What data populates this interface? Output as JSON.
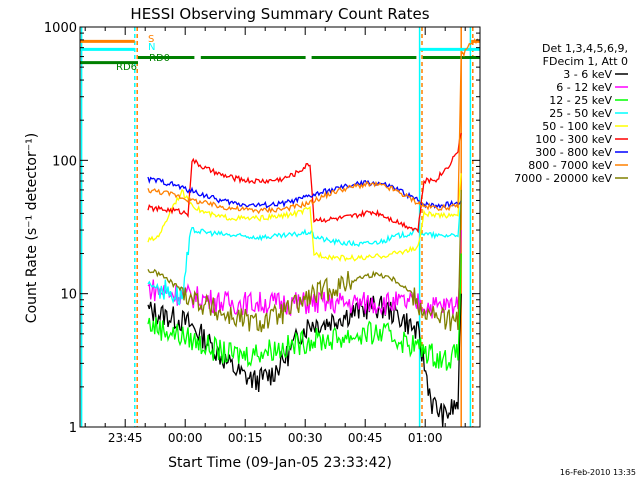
{
  "chart_data": {
    "type": "line",
    "title": "HESSI Observing Summary Count Rates",
    "xlabel": "Start Time (09-Jan-05 23:33:42)",
    "ylabel": "Count Rate (s⁻¹ detector⁻¹)",
    "x_unit": "minutes after 23:33:42",
    "xlim": [
      0,
      100
    ],
    "ylim": [
      1,
      1000
    ],
    "y_scale": "log",
    "grid": false,
    "x_ticks": [
      {
        "x": 11.3,
        "label": "23:45"
      },
      {
        "x": 26.3,
        "label": "00:00"
      },
      {
        "x": 41.3,
        "label": "00:15"
      },
      {
        "x": 56.3,
        "label": "00:30"
      },
      {
        "x": 71.3,
        "label": "00:45"
      },
      {
        "x": 86.3,
        "label": "01:00"
      }
    ],
    "y_ticks": [
      {
        "y": 1,
        "label": "1"
      },
      {
        "y": 10,
        "label": "10"
      },
      {
        "y": 100,
        "label": "100"
      },
      {
        "y": 1000,
        "label": "1000"
      }
    ],
    "legend": {
      "placement": "right",
      "header": [
        "Det 1,3,4,5,6,9,",
        "FDecim 1, Att 0"
      ]
    },
    "series": [
      {
        "name": "3 - 6 keV",
        "color": "#000000",
        "x": [
          17,
          20,
          24,
          27,
          30,
          33,
          37,
          40,
          44,
          48,
          52,
          55,
          57.5,
          61,
          64,
          67,
          70,
          73,
          76,
          79,
          82,
          84.5,
          88,
          91,
          94.5,
          95.3
        ],
        "y": [
          7.5,
          7,
          6.5,
          6,
          5,
          4,
          3,
          2.5,
          2.2,
          2.5,
          3.5,
          5,
          6,
          6,
          6.5,
          7,
          7.5,
          8,
          7.8,
          7,
          6,
          5,
          1.5,
          1.2,
          1.5,
          10
        ]
      },
      {
        "name": "6 - 12 keV",
        "color": "#ff00ff",
        "x": [
          17,
          20,
          24,
          28,
          32,
          37,
          42,
          47,
          52,
          57.5,
          62,
          67,
          72,
          76,
          80,
          84.5,
          88,
          91,
          94.5,
          95.3
        ],
        "y": [
          11,
          10.5,
          10,
          9.5,
          9,
          8.5,
          8.5,
          8.5,
          8.5,
          8.5,
          8.5,
          8.5,
          8.5,
          8.5,
          8.5,
          8.5,
          8,
          8,
          8.5,
          30
        ]
      },
      {
        "name": "12 - 25 keV",
        "color": "#00ff00",
        "x": [
          17,
          20,
          24,
          28,
          32,
          37,
          42,
          47,
          52,
          57.5,
          62,
          67,
          72,
          76,
          80,
          84.5,
          88,
          91,
          94.5,
          95.3
        ],
        "y": [
          6,
          5.5,
          5,
          4.5,
          4,
          3.5,
          3.5,
          3.8,
          4,
          4.5,
          4.5,
          4.8,
          5,
          5,
          4.5,
          4,
          3.5,
          3.2,
          3.5,
          20
        ]
      },
      {
        "name": "25 - 50 keV",
        "color": "#00ffff",
        "x": [
          17,
          20,
          22,
          25.5,
          28,
          31,
          35,
          40,
          45,
          50,
          53,
          57.5,
          58.5,
          62,
          66,
          70,
          73,
          76,
          79,
          82,
          84.5,
          86,
          90,
          94.5,
          95.3
        ],
        "y": [
          12,
          11,
          10.5,
          9.5,
          30,
          29,
          28,
          27,
          26.5,
          27,
          27.5,
          29,
          27,
          25,
          24,
          23.5,
          24,
          25,
          27,
          28,
          30,
          28,
          27,
          28,
          50
        ]
      },
      {
        "name": "50 - 100 keV",
        "color": "#ffff00",
        "x": [
          17,
          19,
          21,
          23,
          25.5,
          27,
          30,
          34,
          38,
          42,
          46,
          50,
          54,
          57.5,
          58.5,
          62,
          66,
          70,
          72,
          74,
          77,
          80,
          84.5,
          86,
          90,
          94.5,
          95.3
        ],
        "y": [
          25,
          26,
          32,
          45,
          58,
          50,
          42,
          38,
          37,
          36.5,
          37,
          38,
          40,
          43,
          20,
          19,
          18.5,
          18.5,
          18.5,
          19,
          19.5,
          20.5,
          22,
          40,
          38,
          40,
          80
        ]
      },
      {
        "name": "100 - 300 keV",
        "color": "#ff0000",
        "x": [
          17,
          20,
          24,
          27,
          28,
          31,
          35,
          39,
          43,
          47,
          51,
          54,
          57.5,
          58.5,
          62,
          66,
          70,
          72.5,
          75,
          78,
          81,
          84.5,
          86,
          89,
          92,
          94.5,
          95.3
        ],
        "y": [
          44,
          43,
          42,
          40,
          100,
          88,
          78,
          73,
          70,
          70,
          73,
          80,
          95,
          36,
          36,
          37,
          39,
          41,
          40,
          36,
          33,
          30,
          70,
          72,
          90,
          120,
          160
        ]
      },
      {
        "name": "300 - 800 keV",
        "color": "#0000ff",
        "x": [
          17,
          20,
          24,
          27,
          31,
          35,
          40,
          45,
          50,
          54,
          57.5,
          61,
          65,
          69,
          72,
          75,
          78,
          81,
          84.5,
          86,
          90,
          94.5,
          95.3
        ],
        "y": [
          72,
          70,
          65,
          60,
          55,
          50,
          47,
          46,
          47,
          50,
          54,
          58,
          62,
          66,
          68,
          67,
          63,
          57,
          50,
          47,
          46,
          48,
          50
        ]
      },
      {
        "name": "800 - 7000 keV",
        "color": "#ff8000",
        "x": [
          17,
          20,
          24,
          27,
          31,
          35,
          40,
          45,
          50,
          54,
          57.5,
          61,
          65,
          69,
          72,
          75,
          78,
          81,
          84.5,
          86,
          90,
          94.5,
          95.3,
          98,
          100
        ],
        "y": [
          60,
          58,
          55,
          51,
          48,
          45,
          43,
          42,
          43,
          45,
          48,
          54,
          60,
          64,
          66,
          65,
          61,
          55,
          48,
          45,
          44,
          45,
          600,
          780,
          780
        ]
      },
      {
        "name": "7000 - 20000 keV",
        "color": "#808000",
        "x": [
          17,
          20,
          23,
          26,
          29,
          32,
          36,
          40,
          44,
          48,
          52,
          55,
          57.5,
          61,
          65,
          68,
          71,
          74,
          77,
          80,
          83,
          84.5,
          87,
          91,
          94.5,
          95.3
        ],
        "y": [
          15,
          14,
          12,
          10.5,
          9,
          8,
          7,
          6.5,
          6,
          6.5,
          7.5,
          8.5,
          9.5,
          10.5,
          11.5,
          12.5,
          13.5,
          14,
          13.5,
          12,
          10,
          8.5,
          7,
          6.5,
          6,
          60
        ]
      }
    ],
    "overlays": [
      {
        "label": "S",
        "color": "#ff8000",
        "y": 780,
        "segments": [
          [
            0,
            13.7
          ],
          [
            97.8,
            100
          ]
        ]
      },
      {
        "label": "N",
        "color": "#00ffff",
        "y": 680,
        "segments": [
          [
            0,
            13.7
          ],
          [
            84.9,
            100
          ]
        ]
      },
      {
        "label": "RD0",
        "color": "#008000",
        "y": 590,
        "segments": [
          [
            14.5,
            28.6
          ],
          [
            30.2,
            56.4
          ],
          [
            57.9,
            84.1
          ],
          [
            85.7,
            100
          ]
        ]
      },
      {
        "label": "RD6",
        "color": "#008000",
        "y": 540,
        "segments": [
          [
            0,
            14.5
          ]
        ]
      }
    ],
    "markers": [
      {
        "x": 0.4,
        "color": "#00ffff",
        "style": "solid"
      },
      {
        "x": 13.7,
        "color": "#00ffff",
        "style": "dashed"
      },
      {
        "x": 14.3,
        "color": "#ff8000",
        "style": "dashed"
      },
      {
        "x": 84.9,
        "color": "#00ffff",
        "style": "solid"
      },
      {
        "x": 85.5,
        "color": "#ff8000",
        "style": "dashed"
      },
      {
        "x": 95.3,
        "color": "#ff8000",
        "style": "solid"
      },
      {
        "x": 97.6,
        "color": "#00ffff",
        "style": "solid"
      },
      {
        "x": 98.2,
        "color": "#ff8000",
        "style": "dashed"
      }
    ]
  },
  "footer": {
    "timestamp": "16-Feb-2010 13:35"
  }
}
